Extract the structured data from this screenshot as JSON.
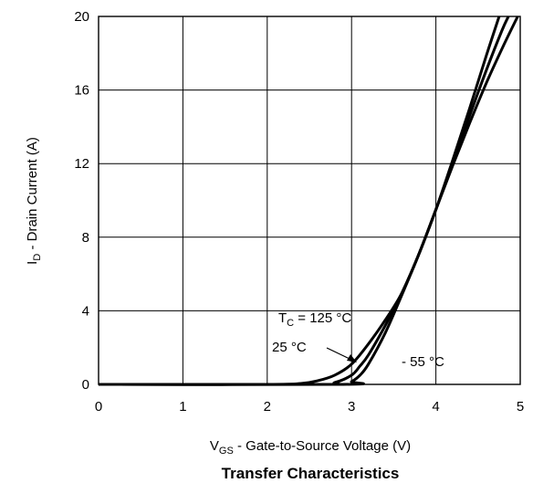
{
  "chart_data": {
    "type": "line",
    "title": "Transfer Characteristics",
    "xlabel": {
      "main": "V",
      "sub": "GS",
      "rest": " - Gate-to-Source Voltage (V)"
    },
    "ylabel": {
      "main": "I",
      "sub": "D",
      "rest": " - Drain Current (A)"
    },
    "xlim": [
      0,
      5
    ],
    "ylim": [
      0,
      20
    ],
    "xticks": [
      "0",
      "1",
      "2",
      "3",
      "4",
      "5"
    ],
    "yticks": [
      "0",
      "4",
      "8",
      "12",
      "16",
      "20"
    ],
    "grid": true,
    "legend": "none",
    "series": [
      {
        "name": "T_C = 125 °C",
        "x": [
          0,
          2.0,
          2.4,
          2.6,
          2.8,
          3.0,
          3.2,
          3.4,
          3.6,
          3.8,
          4.0,
          4.2,
          4.4,
          4.6,
          4.8,
          4.97
        ],
        "y": [
          0,
          0,
          0.05,
          0.2,
          0.5,
          1.1,
          2.2,
          3.5,
          5.0,
          7.1,
          9.5,
          11.9,
          14.2,
          16.4,
          18.4,
          20.0
        ]
      },
      {
        "name": "25 °C",
        "x": [
          0,
          2.6,
          2.8,
          3.0,
          3.1,
          3.2,
          3.4,
          3.6,
          3.8,
          4.0,
          4.2,
          4.4,
          4.6,
          4.78,
          4.86
        ],
        "y": [
          0,
          0,
          0.1,
          0.5,
          1.0,
          1.6,
          3.2,
          5.0,
          7.1,
          9.5,
          12.0,
          14.6,
          17.1,
          19.2,
          20.0
        ]
      },
      {
        "name": "- 55 °C",
        "x": [
          0,
          2.9,
          3.0,
          3.1,
          3.2,
          3.4,
          3.6,
          3.8,
          4.0,
          4.2,
          4.4,
          4.6,
          4.75
        ],
        "y": [
          0,
          0,
          0.15,
          0.5,
          1.1,
          2.8,
          4.9,
          7.1,
          9.5,
          12.2,
          15.0,
          17.9,
          20.0
        ]
      }
    ],
    "annotations": {
      "tc_label": {
        "main": "T",
        "sub": "C",
        "rest": " = 125 °C"
      },
      "t25_label": "25 °C",
      "tm55_label": "- 55 °C"
    },
    "line_color": "#000000",
    "grid_color": "#000000"
  }
}
